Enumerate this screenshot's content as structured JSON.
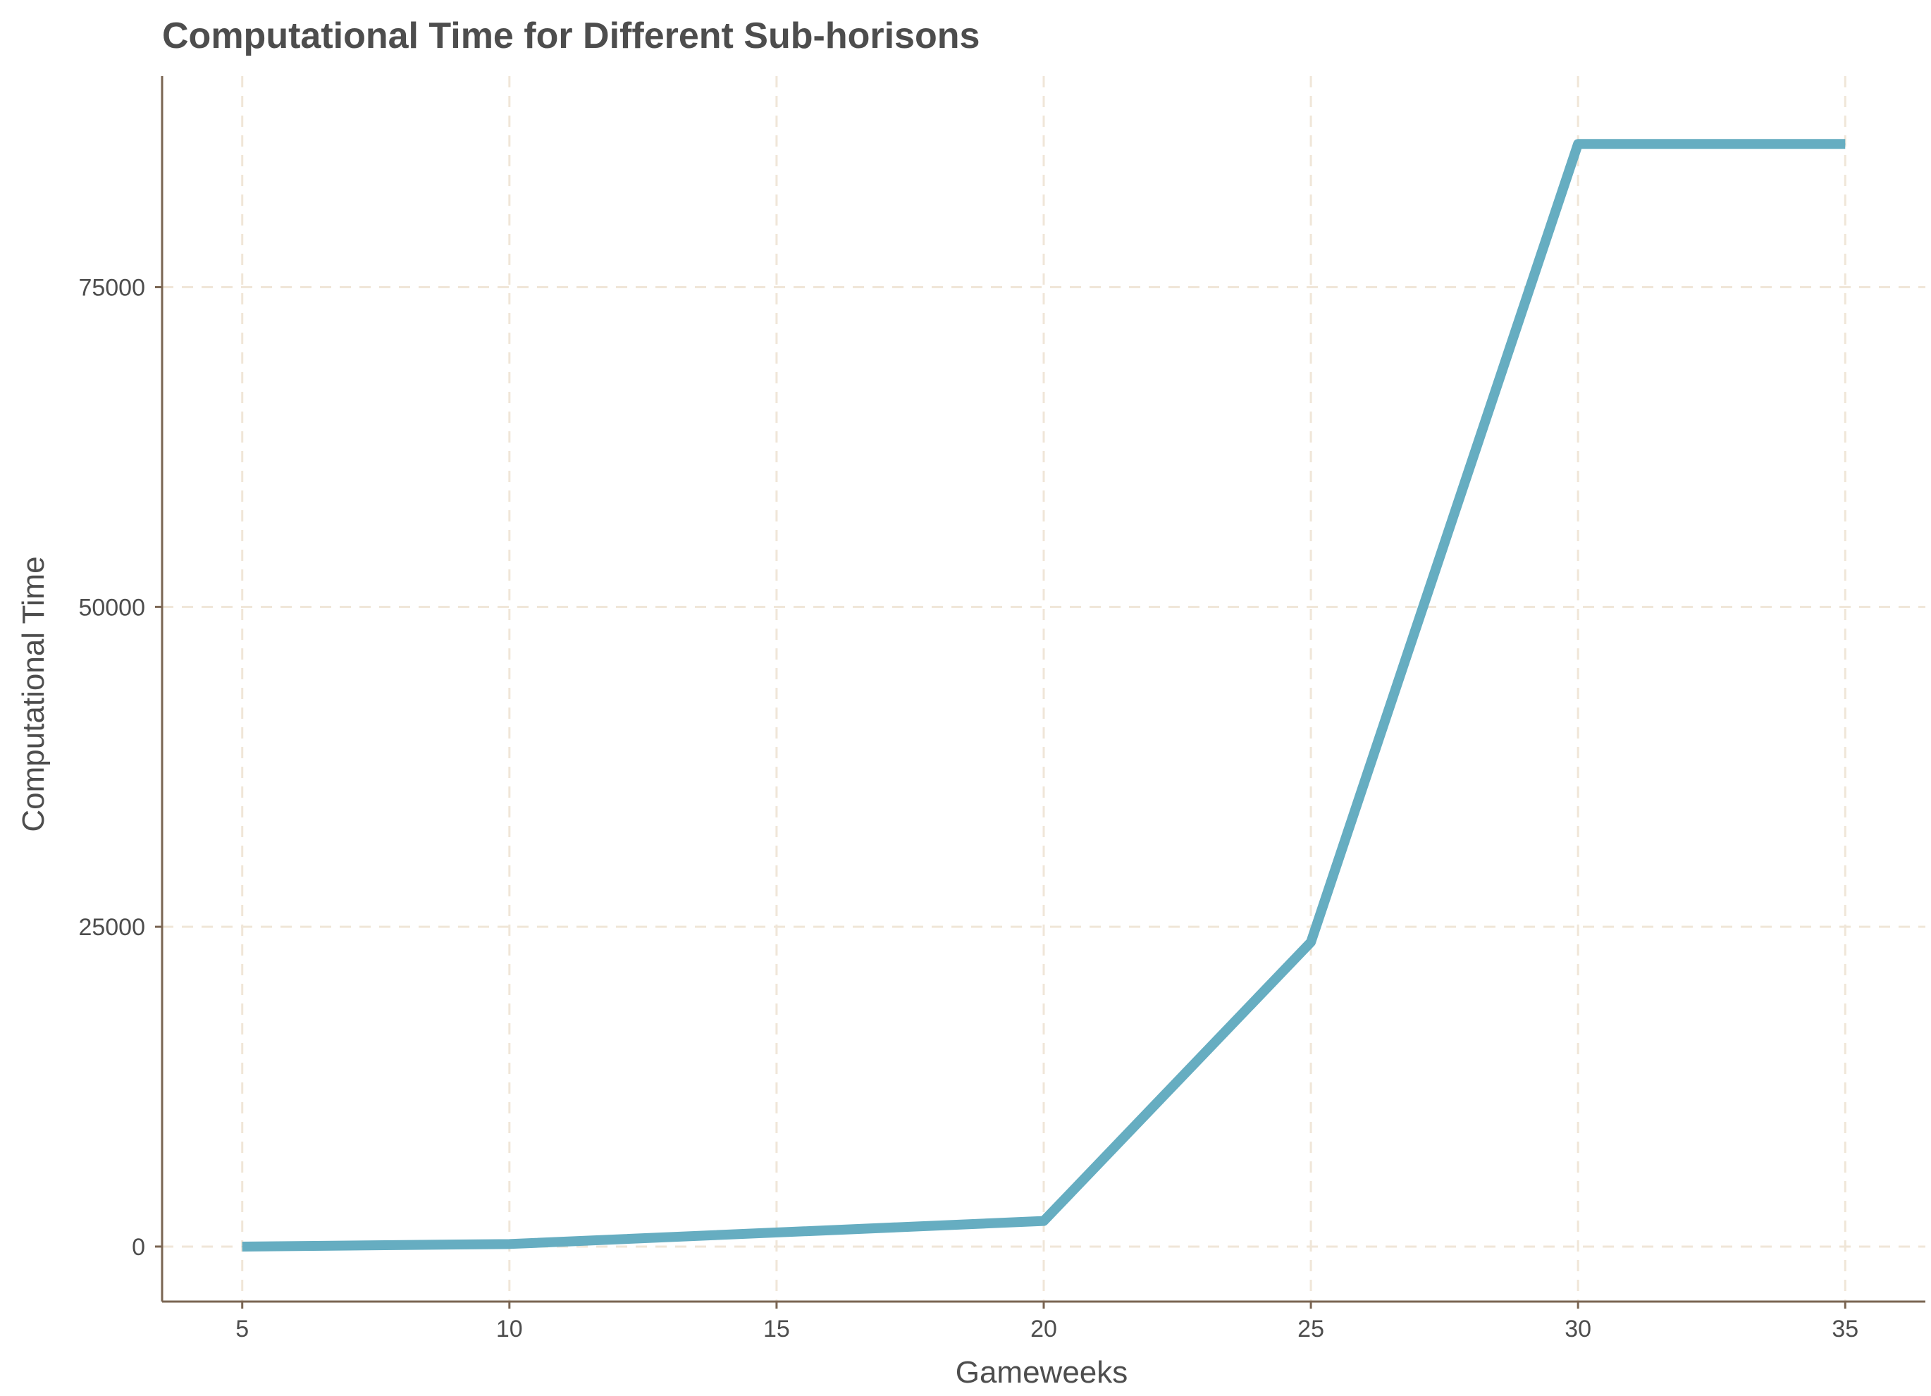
{
  "chart_data": {
    "type": "line",
    "title": "Computational Time for Different Sub-horisons",
    "xlabel": "Gameweeks",
    "ylabel": "Computational Time",
    "x": [
      5,
      10,
      20,
      25,
      30,
      35
    ],
    "series": [
      {
        "values": [
          0,
          200,
          2000,
          23800,
          86200,
          86200
        ]
      }
    ],
    "xticks": [
      5,
      10,
      15,
      20,
      25,
      30,
      35
    ],
    "yticks": [
      0,
      25000,
      50000,
      75000
    ],
    "xlim": [
      3.5,
      36.5
    ],
    "ylim": [
      -4300,
      91500
    ],
    "grid": true,
    "line_color": "#66adc1"
  }
}
